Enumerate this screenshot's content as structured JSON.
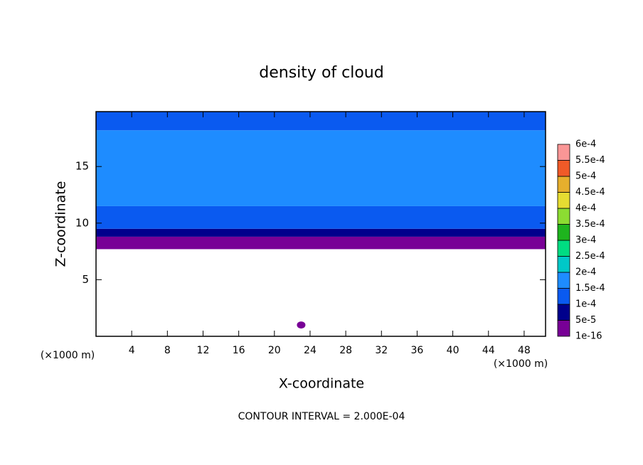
{
  "chart_data": {
    "type": "contour",
    "title": "density of cloud",
    "x_label": "X-coordinate",
    "y_label": "Z-coordinate",
    "x_unit": "(×1000 m)",
    "y_unit": "(×1000 m)",
    "footer": "CONTOUR INTERVAL = 2.000E-04",
    "xlim": [
      0,
      50.4
    ],
    "ylim": [
      0,
      19.85
    ],
    "xticks": [
      4,
      8,
      12,
      16,
      20,
      24,
      28,
      32,
      36,
      40,
      44,
      48
    ],
    "yticks": [
      5,
      10,
      15
    ],
    "colorbar": {
      "levels": [
        {
          "value": 1e-16,
          "label": "1e-16"
        },
        {
          "value": 5e-05,
          "label": "5e-5"
        },
        {
          "value": 0.0001,
          "label": "1e-4"
        },
        {
          "value": 0.00015,
          "label": "1.5e-4"
        },
        {
          "value": 0.0002,
          "label": "2e-4"
        },
        {
          "value": 0.00025,
          "label": "2.5e-4"
        },
        {
          "value": 0.0003,
          "label": "3e-4"
        },
        {
          "value": 0.00035,
          "label": "3.5e-4"
        },
        {
          "value": 0.0004,
          "label": "4e-4"
        },
        {
          "value": 0.00045,
          "label": "4.5e-4"
        },
        {
          "value": 0.0005,
          "label": "5e-4"
        },
        {
          "value": 0.00055,
          "label": "5.5e-4"
        },
        {
          "value": 0.0006,
          "label": "6e-4"
        }
      ],
      "colors": [
        "#780096",
        "#00008c",
        "#0a5af0",
        "#1e8cff",
        "#00c8c8",
        "#00dc82",
        "#1eb41e",
        "#8cdc32",
        "#e6dc32",
        "#e6af2d",
        "#f05a28",
        "#fa9696"
      ]
    },
    "bands": [
      {
        "z": [
          7.7,
          8.8
        ],
        "value": 2e-05
      },
      {
        "z": [
          8.8,
          9.5
        ],
        "value": 7e-05
      },
      {
        "z": [
          9.5,
          11.5
        ],
        "value": 0.00012
      },
      {
        "z": [
          11.5,
          18.2
        ],
        "value": 0.00016
      },
      {
        "z": [
          18.2,
          19.85
        ],
        "value": 0.00012
      }
    ],
    "patches": [
      {
        "x": 23,
        "z": 1,
        "value": 2e-05
      }
    ]
  }
}
